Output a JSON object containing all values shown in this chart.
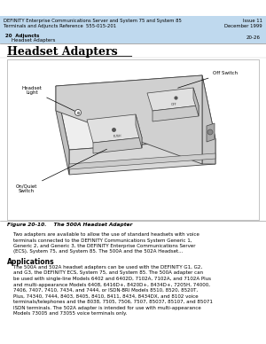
{
  "header_bg": "#bfd9ee",
  "header_text1": "DEFINITY Enterprise Communications Server and System 75 and System 85",
  "header_text2": "Terminals and Adjuncts Reference  555-015-201",
  "header_right1": "Issue 11",
  "header_right2": "December 1999",
  "subheader_left1": "20  Adjuncts",
  "subheader_left2": "    Headset Adapters",
  "subheader_right": "20-26",
  "section_title": "Headset Adapters",
  "figure_caption": "Figure 20-10.    The 500A Headset Adapter",
  "body_text1": "    Two adapters are available to allow the use of standard headsets with voice",
  "body_text2": "    terminals connected to the DEFINITY Communications System Generic 1,",
  "body_text3": "    Generic 2, and Generic 3, the DEFINITY Enterprise Communications Server",
  "body_text4": "    (ECS), System 75, and System 85. The 500A and the 502A Headset...",
  "applications_title": "Applications",
  "app_text1": "    The 500A and 502A headset adapters can be used with the DEFINITY G1, G2,",
  "app_text2": "    and G3, the DEFINITY ECS, System 75, and System 85. The 500A adapter can",
  "app_text3": "    be used with single-line Models 6402 and 6402D, 7102A, 7102A, and 7102A Plus",
  "app_text4": "    and multi-appearance Models 6408, 6416D+, 8420D+, 8434D+, 7205H, 74000,",
  "app_text5": "    7406, 7407, 7410, 7434, and 7444, or ISDN-BRI Models 8510, 8520, 8520T,",
  "app_text6": "    Plus, 74340, 7444, 8403, 8405, 8410, 8411, 8434, 8434DX, and 8102 voice",
  "app_text7": "    terminals/telephones and the 8038, 7505, 7506, 7507, 85037, 85107, and 85071",
  "app_text8": "    ISDN terminals. The 502A adapter is intended for use with multi-appearance",
  "app_text9": "    Models 73005 and 73055 voice terminals only.",
  "bg_color": "#ffffff",
  "label_headset_light": "Headset\nLight",
  "label_off_switch": "Off Switch",
  "label_on_quiet": "On/Quiet\nSwitch"
}
